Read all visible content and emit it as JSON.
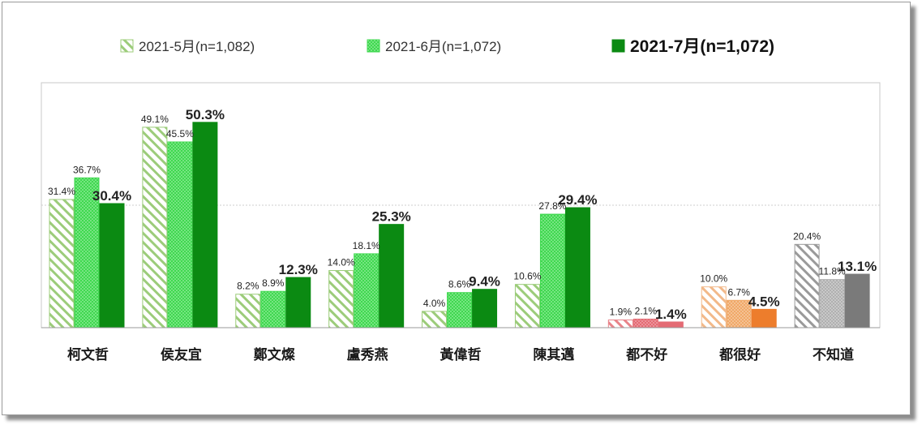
{
  "chart_data": {
    "type": "bar",
    "categories": [
      "柯文哲",
      "侯友宜",
      "鄭文燦",
      "盧秀燕",
      "黃偉哲",
      "陳其邁",
      "都不好",
      "都很好",
      "不知道"
    ],
    "series": [
      {
        "name": "2021-5月(n=1,082)",
        "values": [
          31.4,
          49.1,
          8.2,
          14.0,
          4.0,
          10.6,
          1.9,
          10.0,
          20.4
        ],
        "labels": [
          "31.4%",
          "49.1%",
          "8.2%",
          "14.0%",
          "4.0%",
          "10.6%",
          "1.9%",
          "10.0%",
          "20.4%"
        ]
      },
      {
        "name": "2021-6月(n=1,072)",
        "values": [
          36.7,
          45.5,
          8.9,
          18.1,
          8.6,
          27.8,
          2.1,
          6.7,
          11.8
        ],
        "labels": [
          "36.7%",
          "45.5%",
          "8.9%",
          "18.1%",
          "8.6%",
          "27.8%",
          "2.1%",
          "6.7%",
          "11.8%"
        ]
      },
      {
        "name": "2021-7月(n=1,072)",
        "values": [
          30.4,
          50.3,
          12.3,
          25.3,
          9.4,
          29.4,
          1.4,
          4.5,
          13.1
        ],
        "labels": [
          "30.4%",
          "50.3%",
          "12.3%",
          "25.3%",
          "9.4%",
          "29.4%",
          "1.4%",
          "4.5%",
          "13.1%"
        ]
      }
    ],
    "ylim": [
      0,
      60
    ],
    "gridlines": [
      30
    ],
    "legend_position": "top",
    "category_colors": [
      [
        "#9ccc7a",
        "#3fd84f",
        "#0b8a12"
      ],
      [
        "#9ccc7a",
        "#3fd84f",
        "#0b8a12"
      ],
      [
        "#9ccc7a",
        "#3fd84f",
        "#0b8a12"
      ],
      [
        "#9ccc7a",
        "#3fd84f",
        "#0b8a12"
      ],
      [
        "#9ccc7a",
        "#3fd84f",
        "#0b8a12"
      ],
      [
        "#9ccc7a",
        "#3fd84f",
        "#0b8a12"
      ],
      [
        "#e8848a",
        "#e46b74",
        "#e46b74"
      ],
      [
        "#f2b98a",
        "#f0a868",
        "#ed7d2c"
      ],
      [
        "#9a9a9a",
        "#b0b0b0",
        "#7a7a7a"
      ]
    ],
    "highlight_label_colors": [
      "#1f8a1f",
      "#1f8a1f",
      "#1f8a1f",
      "#1f8a1f",
      "#1f8a1f",
      "#1f8a1f",
      "#b01818",
      "#ed7d2c",
      "#6e6e6e"
    ]
  }
}
